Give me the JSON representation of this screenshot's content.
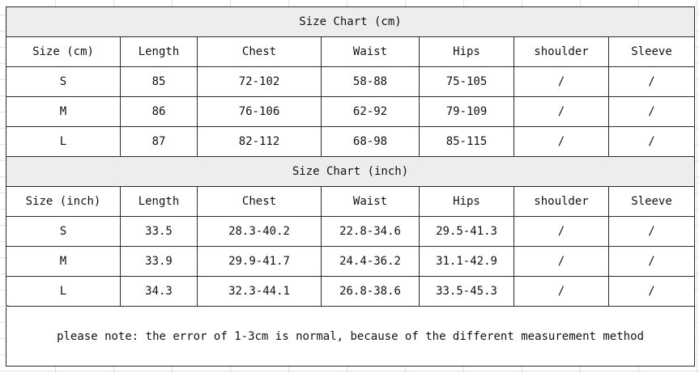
{
  "cm_section": {
    "title": "Size Chart (cm)",
    "headers": [
      "Size (cm)",
      "Length",
      "Chest",
      "Waist",
      "Hips",
      "shoulder",
      "Sleeve"
    ],
    "rows": [
      [
        "S",
        "85",
        "72-102",
        "58-88",
        "75-105",
        "/",
        "/"
      ],
      [
        "M",
        "86",
        "76-106",
        "62-92",
        "79-109",
        "/",
        "/"
      ],
      [
        "L",
        "87",
        "82-112",
        "68-98",
        "85-115",
        "/",
        "/"
      ]
    ]
  },
  "inch_section": {
    "title": "Size Chart (inch)",
    "headers": [
      "Size (inch)",
      "Length",
      "Chest",
      "Waist",
      "Hips",
      "shoulder",
      "Sleeve"
    ],
    "rows": [
      [
        "S",
        "33.5",
        "28.3-40.2",
        "22.8-34.6",
        "29.5-41.3",
        "/",
        "/"
      ],
      [
        "M",
        "33.9",
        "29.9-41.7",
        "24.4-36.2",
        "31.1-42.9",
        "/",
        "/"
      ],
      [
        "L",
        "34.3",
        "32.3-44.1",
        "26.8-38.6",
        "33.5-45.3",
        "/",
        "/"
      ]
    ]
  },
  "note": "please note: the error of 1-3cm is normal, because of the different measurement method",
  "colors": {
    "title_fill": "#ededed",
    "border": "#2a2a2a",
    "gridline": "#e3e3e3"
  }
}
